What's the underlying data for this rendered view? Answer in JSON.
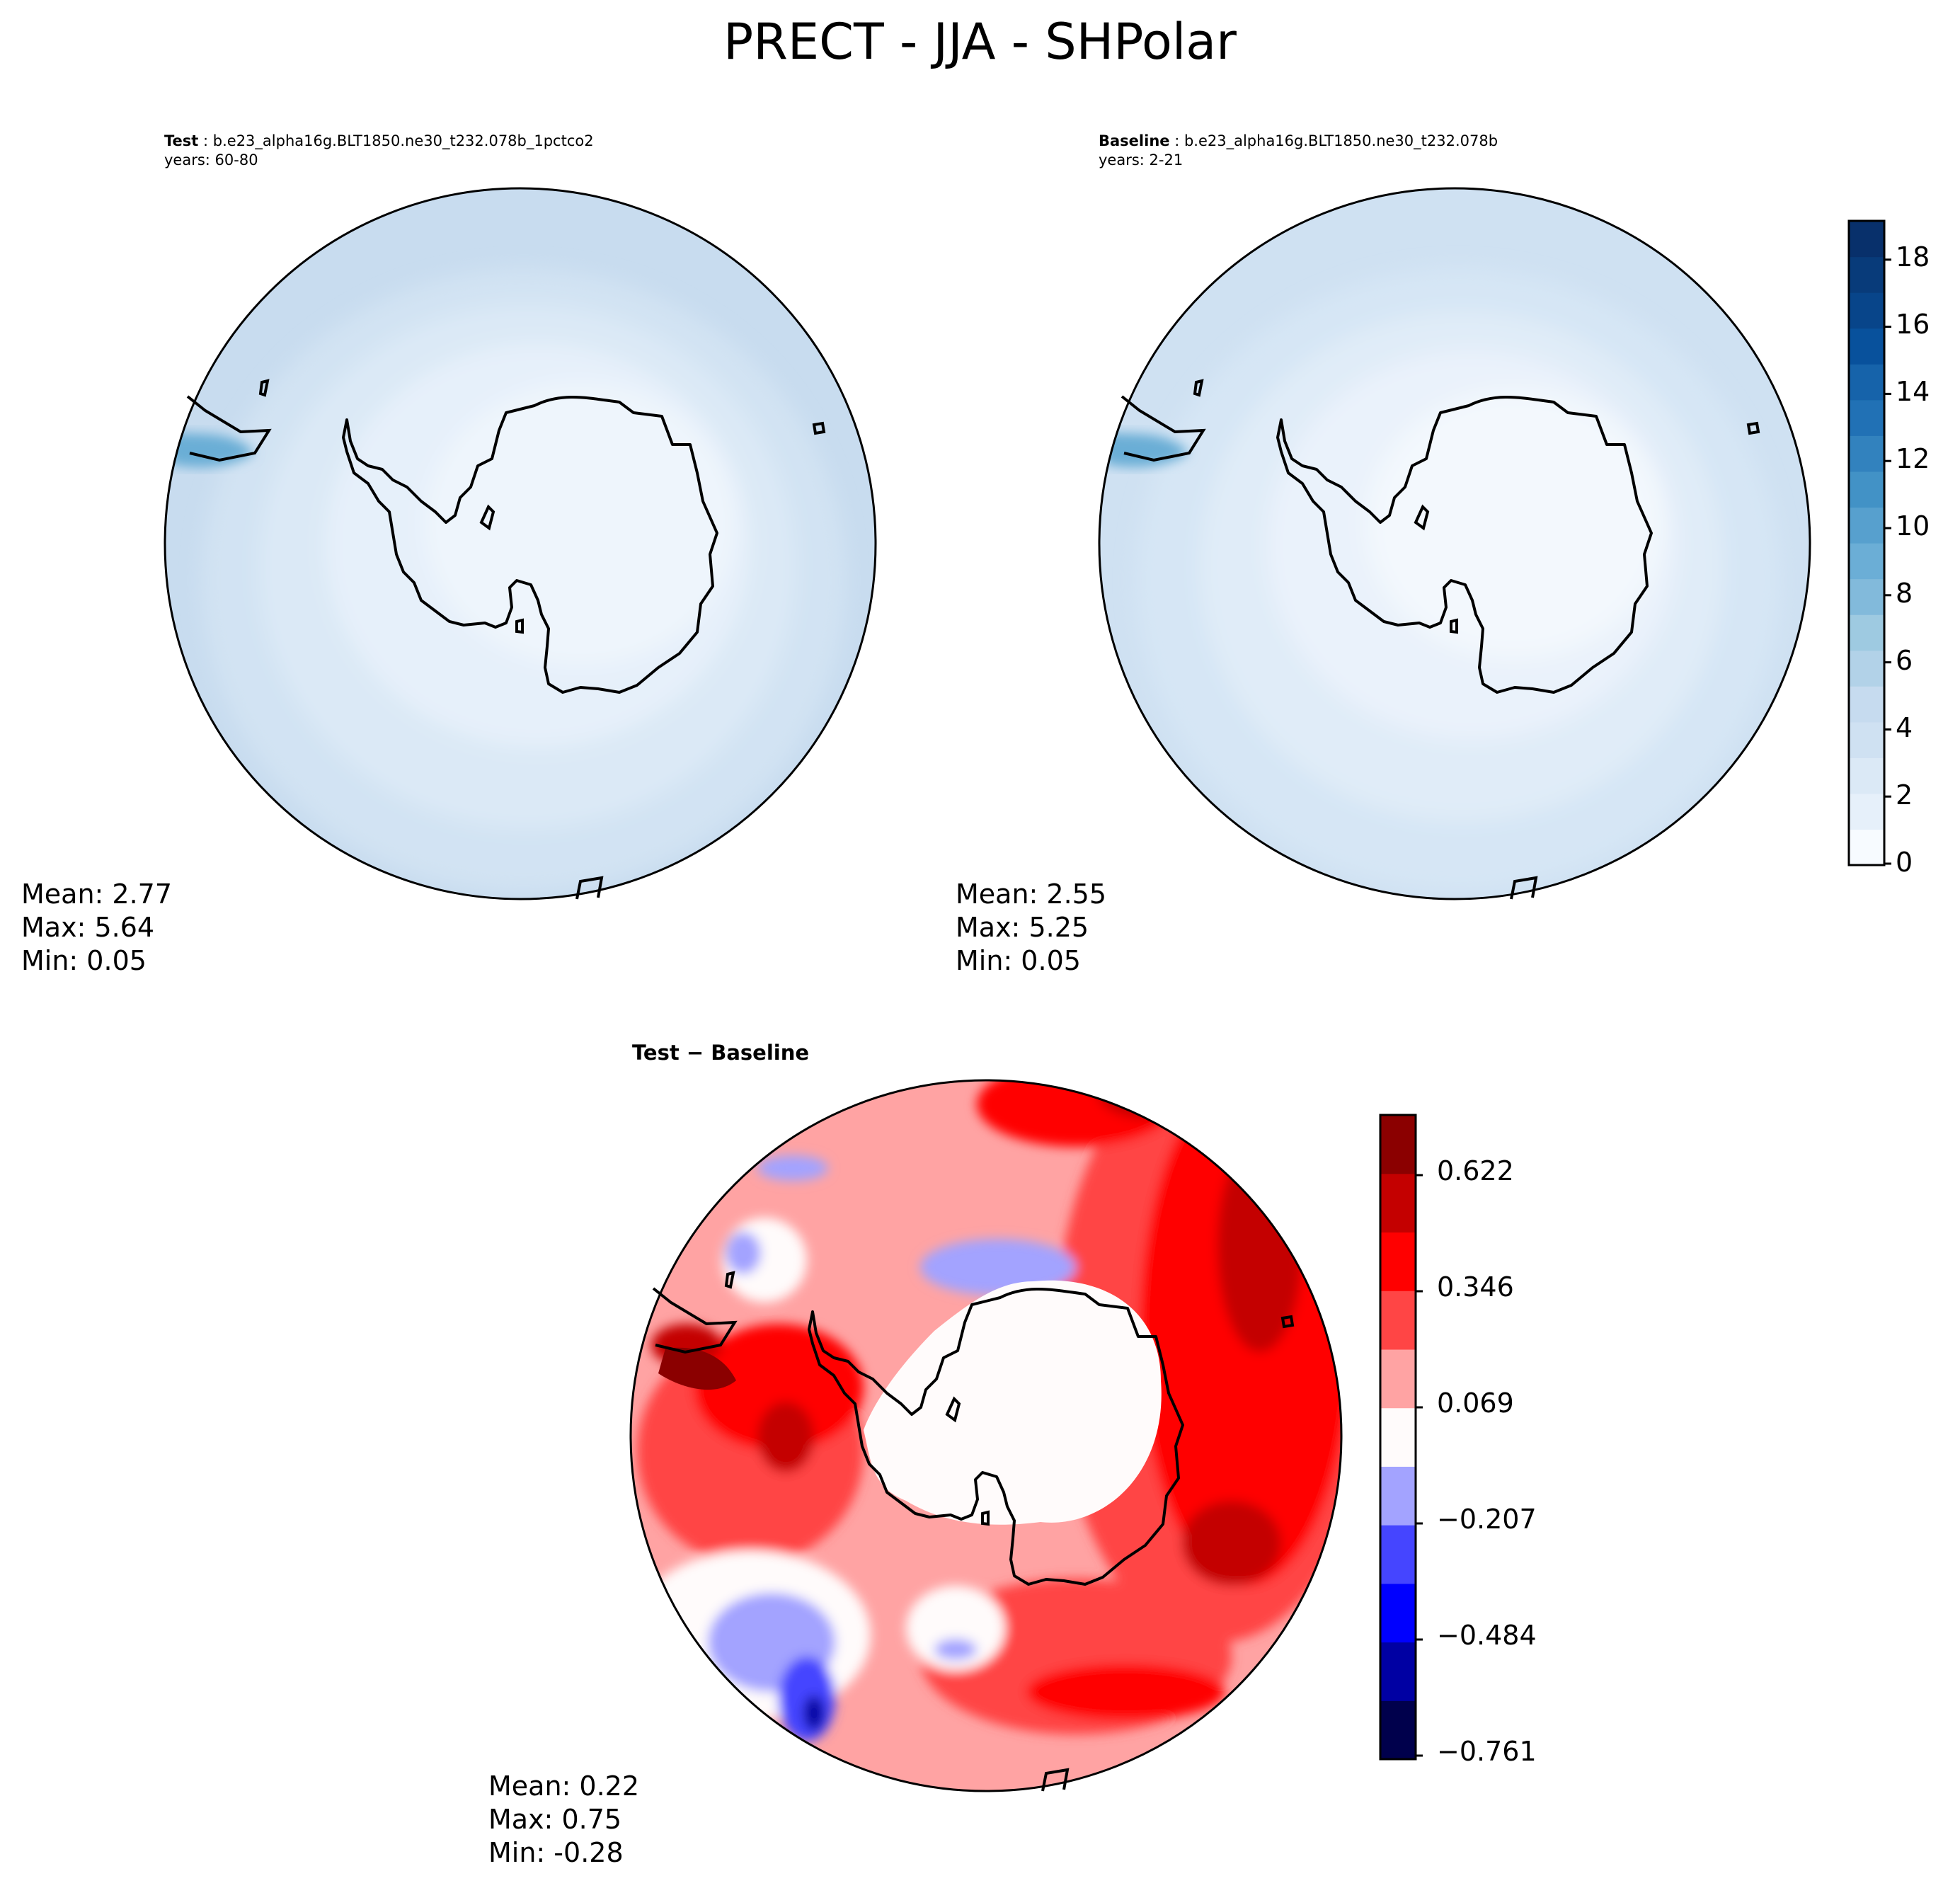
{
  "figure": {
    "title": "PRECT - JJA - SHPolar"
  },
  "test_panel": {
    "label": "Test",
    "case": "b.e23_alpha16g.BLT1850.ne30_t232.078b_1pctco2",
    "years": "years: 60-80",
    "stats": {
      "mean": "Mean:  2.77",
      "max": "Max:  5.64",
      "min": "Min:  0.05"
    }
  },
  "baseline_panel": {
    "label": "Baseline",
    "case": "b.e23_alpha16g.BLT1850.ne30_t232.078b",
    "years": "years: 2-21",
    "stats": {
      "mean": "Mean:  2.55",
      "max": "Max:  5.25",
      "min": "Min:  0.05"
    }
  },
  "diff_panel": {
    "title": "Test − Baseline",
    "stats": {
      "mean": "Mean:  0.22",
      "max": "Max:  0.75",
      "min": "Min: -0.28"
    }
  },
  "colorbar_main": {
    "ticks": [
      "0",
      "2",
      "4",
      "6",
      "8",
      "10",
      "12",
      "14",
      "16",
      "18"
    ],
    "colors": [
      "#f7fbff",
      "#e6f0fa",
      "#dbe9f6",
      "#cfe1f2",
      "#c6dbef",
      "#b2d2e8",
      "#9ecae1",
      "#82badb",
      "#6baed6",
      "#57a0ce",
      "#4292c6",
      "#3282be",
      "#2171b5",
      "#1663aa",
      "#08519c",
      "#08458a",
      "#083b7a",
      "#08306b"
    ]
  },
  "colorbar_diff": {
    "ticks": [
      "0.622",
      "0.346",
      "0.069",
      "−0.207",
      "−0.484",
      "−0.761"
    ],
    "colors": [
      "#00004c",
      "#0000a3",
      "#0000ff",
      "#4545ff",
      "#a3a3ff",
      "#fffbfb",
      "#ffa3a3",
      "#ff4545",
      "#ff0000",
      "#c40000",
      "#8b0000"
    ]
  }
}
